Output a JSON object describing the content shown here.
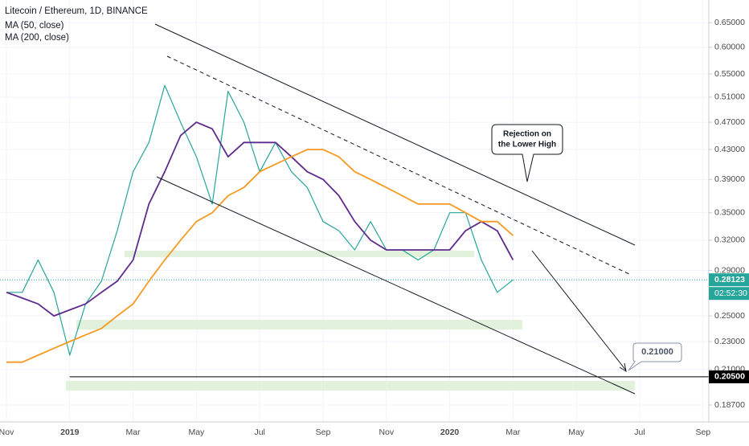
{
  "chart_data": {
    "type": "line",
    "title": "Litecoin / Ethereum, 1D, BINANCE",
    "log_scale": true,
    "grid": true,
    "categories": [
      "Nov",
      null,
      null,
      null,
      "2019",
      null,
      null,
      null,
      "Mar",
      null,
      null,
      null,
      "May",
      null,
      null,
      null,
      "Jul",
      null,
      null,
      null,
      "Sep",
      null,
      null,
      null,
      "Nov",
      null,
      null,
      null,
      "2020",
      null,
      null,
      null,
      "Mar",
      null,
      null,
      null,
      "May",
      null,
      null,
      null,
      "Jul",
      null,
      null,
      null,
      "Sep"
    ],
    "series": [
      {
        "color": "#26a69a",
        "values": [
          0.27,
          0.27,
          0.3,
          0.27,
          0.22,
          0.26,
          0.28,
          0.33,
          0.4,
          0.44,
          0.53,
          0.47,
          0.42,
          0.36,
          0.52,
          0.47,
          0.4,
          0.44,
          0.4,
          0.38,
          0.34,
          0.33,
          0.31,
          0.34,
          0.31,
          0.31,
          0.3,
          0.31,
          0.35,
          0.35,
          0.3,
          0.27,
          0.28123,
          null,
          null,
          null,
          null,
          null,
          null,
          null,
          null,
          null,
          null,
          null,
          null
        ]
      },
      {
        "name": "MA (50, close)",
        "color": "#5e2a8c",
        "values": [
          0.27,
          0.265,
          0.26,
          0.25,
          0.255,
          0.26,
          0.27,
          0.28,
          0.3,
          0.36,
          0.4,
          0.45,
          0.47,
          0.46,
          0.42,
          0.44,
          0.44,
          0.44,
          0.42,
          0.4,
          0.39,
          0.37,
          0.34,
          0.32,
          0.31,
          0.31,
          0.31,
          0.31,
          0.31,
          0.33,
          0.34,
          0.33,
          0.3,
          null,
          null,
          null,
          null,
          null,
          null,
          null,
          null,
          null,
          null,
          null,
          null
        ]
      },
      {
        "name": "MA (200, close)",
        "color": "#f59a23",
        "values": [
          0.215,
          0.215,
          0.22,
          0.225,
          0.23,
          0.235,
          0.24,
          0.25,
          0.26,
          0.28,
          0.3,
          0.32,
          0.34,
          0.35,
          0.37,
          0.38,
          0.4,
          0.41,
          0.42,
          0.43,
          0.43,
          0.42,
          0.4,
          0.39,
          0.38,
          0.37,
          0.36,
          0.36,
          0.36,
          0.35,
          0.34,
          0.34,
          0.325,
          null,
          null,
          null,
          null,
          null,
          null,
          null,
          null,
          null,
          null,
          null,
          null
        ]
      }
    ],
    "ylim": [
      0.177,
      0.7
    ],
    "yticks": [
      {
        "value": 0.65,
        "label": "0.65000"
      },
      {
        "value": 0.6,
        "label": "0.60000"
      },
      {
        "value": 0.55,
        "label": "0.55000"
      },
      {
        "value": 0.51,
        "label": "0.51000"
      },
      {
        "value": 0.47,
        "label": "0.47000"
      },
      {
        "value": 0.43,
        "label": "0.43000"
      },
      {
        "value": 0.39,
        "label": "0.39000"
      },
      {
        "value": 0.35,
        "label": "0.35000"
      },
      {
        "value": 0.32,
        "label": "0.32000"
      },
      {
        "value": 0.29,
        "label": "0.29000"
      },
      {
        "value": 0.25,
        "label": "0.25000"
      },
      {
        "value": 0.23,
        "label": "0.23000"
      },
      {
        "value": 0.21,
        "label": "0.21000"
      },
      {
        "value": 0.187,
        "label": "0.18700"
      }
    ],
    "price_lines": [
      {
        "value": 0.28123,
        "label": "0.28123",
        "color": "#26a69a",
        "dotted": true
      },
      {
        "value": 0.205,
        "label": "0.20500",
        "color": "#000000",
        "dotted": false
      }
    ],
    "countdown": "02:52:30",
    "annotations": [
      {
        "lines": [
          "Rejection on",
          "the Lower High"
        ]
      },
      {
        "lines": [
          "0.21000"
        ]
      }
    ]
  }
}
